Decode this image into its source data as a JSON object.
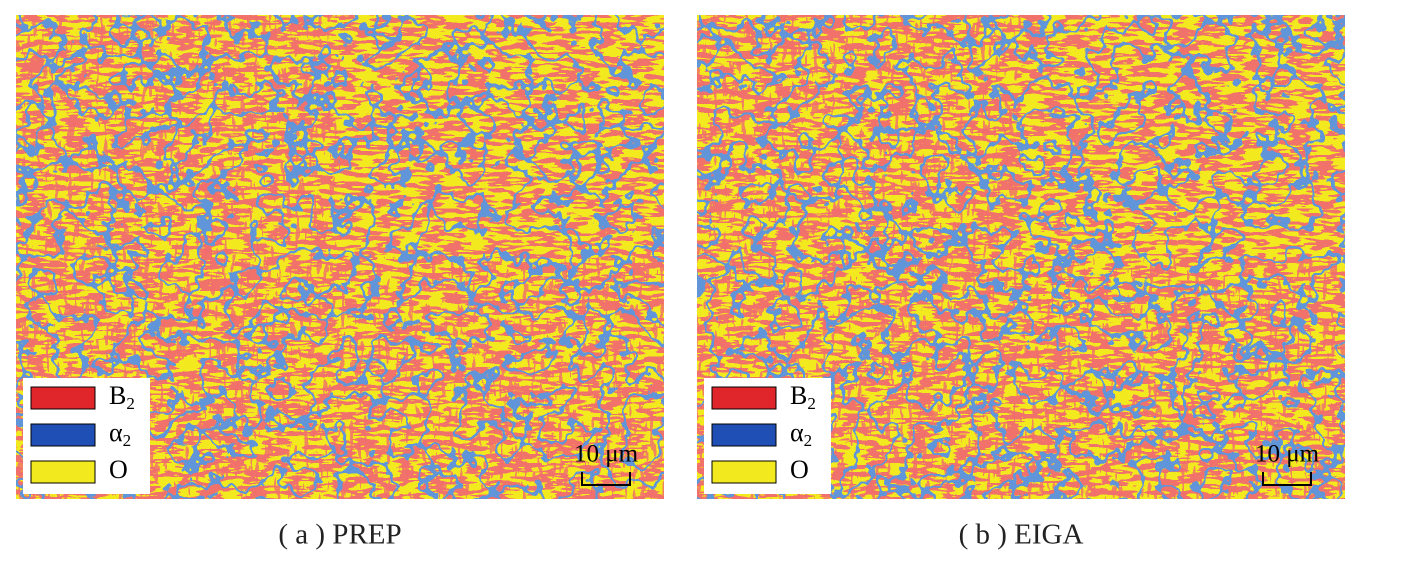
{
  "panels": [
    {
      "legend": [
        {
          "label": "B",
          "subscript": "2",
          "color": "#e0262a"
        },
        {
          "label": "α",
          "subscript": "2",
          "color": "#1f4fb4"
        },
        {
          "label": "O",
          "color": "#f2ea1e"
        }
      ],
      "scale_bar": "10 μm",
      "caption": "( a ) PREP"
    },
    {
      "legend": [
        {
          "label": "B",
          "subscript": "2",
          "color": "#e0262a"
        },
        {
          "label": "α",
          "subscript": "2",
          "color": "#1f4fb4"
        },
        {
          "label": "O",
          "color": "#f2ea1e"
        }
      ],
      "scale_bar": "10 μm",
      "caption": "( b ) EIGA"
    }
  ]
}
